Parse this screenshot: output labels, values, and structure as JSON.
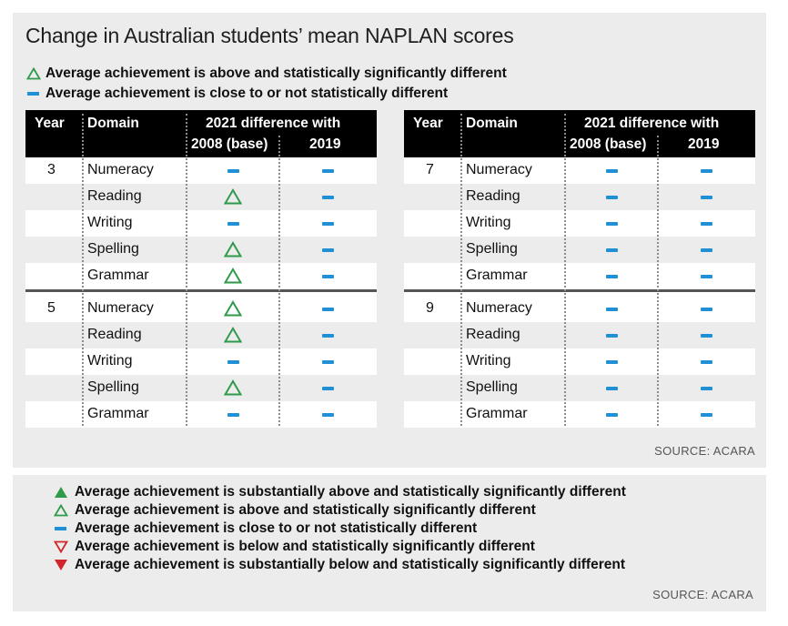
{
  "title": "Change in Australian students’ mean NAPLAN scores",
  "top_legend": [
    {
      "icon": "hollow-green-triangle-icon",
      "text": "Average achievement is above and statistically significantly different"
    },
    {
      "icon": "blue-dash-icon",
      "text": "Average achievement is close to or not statistically different"
    }
  ],
  "table_headers": {
    "year": "Year",
    "domain": "Domain",
    "diff": "2021 difference with",
    "base": "2008 (base)",
    "y2019": "2019"
  },
  "tables": [
    {
      "groups": [
        {
          "year": "3",
          "rows": [
            {
              "domain": "Numeracy",
              "v2008": "close",
              "v2019": "close"
            },
            {
              "domain": "Reading",
              "v2008": "above",
              "v2019": "close"
            },
            {
              "domain": "Writing",
              "v2008": "close",
              "v2019": "close"
            },
            {
              "domain": "Spelling",
              "v2008": "above",
              "v2019": "close"
            },
            {
              "domain": "Grammar",
              "v2008": "above",
              "v2019": "close"
            }
          ]
        },
        {
          "year": "5",
          "rows": [
            {
              "domain": "Numeracy",
              "v2008": "above",
              "v2019": "close"
            },
            {
              "domain": "Reading",
              "v2008": "above",
              "v2019": "close"
            },
            {
              "domain": "Writing",
              "v2008": "close",
              "v2019": "close"
            },
            {
              "domain": "Spelling",
              "v2008": "above",
              "v2019": "close"
            },
            {
              "domain": "Grammar",
              "v2008": "close",
              "v2019": "close"
            }
          ]
        }
      ]
    },
    {
      "groups": [
        {
          "year": "7",
          "rows": [
            {
              "domain": "Numeracy",
              "v2008": "close",
              "v2019": "close"
            },
            {
              "domain": "Reading",
              "v2008": "close",
              "v2019": "close"
            },
            {
              "domain": "Writing",
              "v2008": "close",
              "v2019": "close"
            },
            {
              "domain": "Spelling",
              "v2008": "close",
              "v2019": "close"
            },
            {
              "domain": "Grammar",
              "v2008": "close",
              "v2019": "close"
            }
          ]
        },
        {
          "year": "9",
          "rows": [
            {
              "domain": "Numeracy",
              "v2008": "close",
              "v2019": "close"
            },
            {
              "domain": "Reading",
              "v2008": "close",
              "v2019": "close"
            },
            {
              "domain": "Writing",
              "v2008": "close",
              "v2019": "close"
            },
            {
              "domain": "Spelling",
              "v2008": "close",
              "v2019": "close"
            },
            {
              "domain": "Grammar",
              "v2008": "close",
              "v2019": "close"
            }
          ]
        }
      ]
    }
  ],
  "source_top": "SOURCE: ACARA",
  "bottom_legend": [
    {
      "icon": "solid-green-triangle-icon",
      "text": "Average achievement is substantially above and statistically significantly different"
    },
    {
      "icon": "hollow-green-triangle-icon",
      "text": "Average achievement is above and statistically significantly different"
    },
    {
      "icon": "blue-dash-icon",
      "text": "Average achievement is close to or not statistically different"
    },
    {
      "icon": "hollow-red-down-triangle-icon",
      "text": "Average achievement is below and statistically significantly different"
    },
    {
      "icon": "solid-red-down-triangle-icon",
      "text": "Average achievement is substantially below and statistically significantly different"
    }
  ],
  "source_bottom": "SOURCE: ACARA",
  "colors": {
    "green": "#2e9a4a",
    "blue": "#1f8fd6",
    "red": "#d0262b"
  }
}
